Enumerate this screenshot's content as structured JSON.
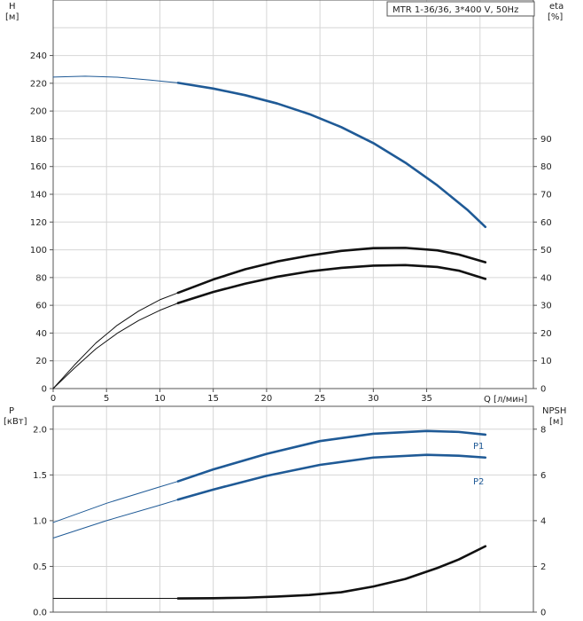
{
  "chart_data": [
    {
      "type": "line",
      "panel": "top",
      "model_label": "MTR 1-36/36, 3*400 V, 50Hz",
      "x_axis": {
        "label": "Q [л/мин]",
        "min": 0,
        "max": 45,
        "ticks": [
          "0",
          "5",
          "10",
          "15",
          "20",
          "25",
          "30",
          "35"
        ]
      },
      "y_left": {
        "label": "H",
        "unit": "[м]",
        "min": 0,
        "max": 280,
        "ticks": [
          "0",
          "20",
          "40",
          "60",
          "80",
          "100",
          "120",
          "140",
          "160",
          "180",
          "200",
          "220",
          "240"
        ]
      },
      "y_right": {
        "label": "eta",
        "unit": "[%]",
        "min": 0,
        "max": 140,
        "ticks": [
          "0",
          "10",
          "20",
          "30",
          "40",
          "50",
          "60",
          "70",
          "80",
          "90"
        ]
      },
      "grid": true,
      "colors": {
        "head": "#1f5a96",
        "eta": "#111111"
      },
      "series": [
        {
          "axis": "left",
          "color": "head",
          "thick_from": 11.7,
          "x": [
            0,
            3,
            6,
            9,
            11.7,
            15,
            18,
            21,
            24,
            27,
            30,
            33,
            36,
            38.8,
            40.5
          ],
          "y": [
            224.5,
            225.1,
            224.4,
            222.4,
            220.3,
            216.2,
            211.4,
            205.4,
            197.8,
            188.4,
            176.9,
            162.8,
            146.4,
            128.9,
            116.5
          ]
        },
        {
          "axis": "right",
          "color": "eta",
          "thick_from": 11.7,
          "x": [
            0,
            2,
            4,
            6,
            8,
            10,
            11.7,
            15,
            18,
            21,
            24,
            27,
            30,
            33,
            36,
            38,
            40.5
          ],
          "y": [
            0,
            7.4,
            14.3,
            19.9,
            24.5,
            28.2,
            30.8,
            34.8,
            37.8,
            40.3,
            42.2,
            43.5,
            44.3,
            44.5,
            43.8,
            42.5,
            39.5
          ]
        },
        {
          "axis": "right",
          "color": "eta",
          "thick_from": 11.7,
          "x": [
            0,
            2,
            4,
            6,
            8,
            10,
            11.7,
            15,
            18,
            21,
            24,
            27,
            30,
            33,
            36,
            38,
            40.5
          ],
          "y": [
            0,
            8.5,
            16.4,
            22.8,
            27.9,
            32.0,
            34.5,
            39.3,
            43.0,
            45.8,
            47.9,
            49.6,
            50.6,
            50.7,
            49.8,
            48.3,
            45.5
          ]
        }
      ]
    },
    {
      "type": "line",
      "panel": "bottom",
      "x_axis": {
        "min": 0,
        "max": 45
      },
      "y_left": {
        "label": "P",
        "unit": "[кВт]",
        "min": 0,
        "max": 2.25,
        "ticks": [
          "0.0",
          "0.5",
          "1.0",
          "1.5",
          "2.0"
        ]
      },
      "y_right": {
        "label": "NPSH",
        "unit": "[м]",
        "min": 0,
        "max": 9,
        "ticks": [
          "0",
          "2",
          "4",
          "6",
          "8"
        ]
      },
      "grid": true,
      "colors": {
        "power": "#1f5a96",
        "npsh": "#111111"
      },
      "series": [
        {
          "name": "P1",
          "axis": "left",
          "color": "power",
          "thick_from": 11.7,
          "x": [
            0,
            5,
            10,
            11.7,
            15,
            20,
            25,
            30,
            35,
            38,
            40.5
          ],
          "y": [
            0.98,
            1.19,
            1.37,
            1.43,
            1.56,
            1.73,
            1.87,
            1.95,
            1.98,
            1.97,
            1.94
          ]
        },
        {
          "name": "P2",
          "axis": "left",
          "color": "power",
          "thick_from": 11.7,
          "x": [
            0,
            5,
            10,
            11.7,
            15,
            20,
            25,
            30,
            35,
            38,
            40.5
          ],
          "y": [
            0.81,
            1.0,
            1.17,
            1.23,
            1.34,
            1.49,
            1.61,
            1.69,
            1.72,
            1.71,
            1.69
          ]
        },
        {
          "axis": "right",
          "color": "npsh",
          "thick_from": 11.7,
          "x": [
            0,
            11.7,
            15,
            18,
            21,
            24,
            27,
            30,
            33,
            36,
            38,
            40.5
          ],
          "y": [
            0.6,
            0.6,
            0.61,
            0.63,
            0.68,
            0.75,
            0.87,
            1.12,
            1.45,
            1.93,
            2.3,
            2.88
          ]
        }
      ]
    }
  ]
}
